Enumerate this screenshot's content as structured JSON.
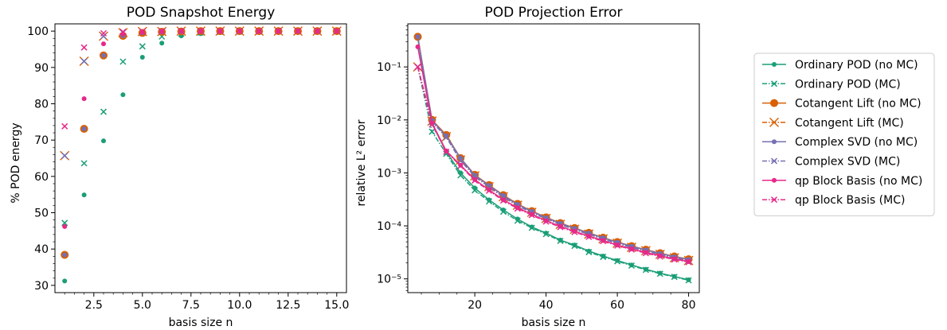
{
  "colors": {
    "ordinary": "#1b9e77",
    "cotangent": "#d95f02",
    "complex": "#7570b3",
    "qp": "#e7298a"
  },
  "legend": [
    {
      "label": "Ordinary POD (no MC)",
      "color": "#1b9e77",
      "marker": "dot",
      "dashed": false
    },
    {
      "label": "Ordinary POD (MC)",
      "color": "#1b9e77",
      "marker": "x",
      "dashed": true
    },
    {
      "label": "Cotangent Lift (no MC)",
      "color": "#d95f02",
      "marker": "dot-large",
      "dashed": false
    },
    {
      "label": "Cotangent Lift (MC)",
      "color": "#d95f02",
      "marker": "x-large",
      "dashed": true
    },
    {
      "label": "Complex SVD (no MC)",
      "color": "#7570b3",
      "marker": "dot",
      "dashed": false
    },
    {
      "label": "Complex SVD (MC)",
      "color": "#7570b3",
      "marker": "x",
      "dashed": true
    },
    {
      "label": "qp Block Basis (no MC)",
      "color": "#e7298a",
      "marker": "dot",
      "dashed": false
    },
    {
      "label": "qp Block Basis (MC)",
      "color": "#e7298a",
      "marker": "x",
      "dashed": true
    }
  ],
  "chart_data": [
    {
      "type": "scatter",
      "title": "POD Snapshot Energy",
      "xlabel": "basis size n",
      "ylabel": "% POD energy",
      "xlim": [
        0.5,
        15.5
      ],
      "ylim": [
        28,
        102
      ],
      "xticks": [
        2.5,
        5.0,
        7.5,
        10.0,
        12.5,
        15.0
      ],
      "xtick_labels": [
        "2.5",
        "5.0",
        "7.5",
        "10.0",
        "12.5",
        "15.0"
      ],
      "yticks": [
        30,
        40,
        50,
        60,
        70,
        80,
        90,
        100
      ],
      "ytick_labels": [
        "30",
        "40",
        "50",
        "60",
        "70",
        "80",
        "90",
        "100"
      ],
      "x": [
        1,
        2,
        3,
        4,
        5,
        6,
        7,
        8,
        9,
        10,
        11,
        12,
        13,
        14,
        15
      ],
      "series": [
        {
          "name": "Ordinary POD (no MC)",
          "color": "#1b9e77",
          "marker": "dot",
          "values": [
            31.2,
            54.9,
            69.8,
            82.5,
            92.8,
            96.7,
            98.7,
            99.3,
            99.6,
            99.8,
            99.9,
            99.9,
            100,
            100,
            100
          ]
        },
        {
          "name": "Ordinary POD (MC)",
          "color": "#1b9e77",
          "marker": "x",
          "values": [
            47.2,
            63.6,
            77.8,
            91.6,
            95.8,
            98.5,
            99.3,
            99.6,
            99.8,
            99.9,
            99.9,
            100,
            100,
            100,
            100
          ]
        },
        {
          "name": "Cotangent Lift (no MC)",
          "color": "#d95f02",
          "marker": "dot-large",
          "values": [
            38.4,
            73.1,
            93.3,
            98.7,
            99.5,
            99.8,
            99.9,
            100,
            100,
            100,
            100,
            100,
            100,
            100,
            100
          ]
        },
        {
          "name": "Cotangent Lift (MC)",
          "color": "#d95f02",
          "marker": "x-large",
          "values": [
            65.7,
            91.7,
            98.6,
            99.6,
            99.9,
            99.9,
            100,
            100,
            100,
            100,
            100,
            100,
            100,
            100,
            100
          ]
        },
        {
          "name": "Complex SVD (no MC)",
          "color": "#7570b3",
          "marker": "dot",
          "values": [
            38.4,
            73.1,
            93.3,
            98.7,
            99.5,
            99.8,
            99.9,
            100,
            100,
            100,
            100,
            100,
            100,
            100,
            100
          ]
        },
        {
          "name": "Complex SVD (MC)",
          "color": "#7570b3",
          "marker": "x",
          "values": [
            65.7,
            91.7,
            98.6,
            99.6,
            99.9,
            99.9,
            100,
            100,
            100,
            100,
            100,
            100,
            100,
            100,
            100
          ]
        },
        {
          "name": "qp Block Basis (no MC)",
          "color": "#e7298a",
          "marker": "dot",
          "values": [
            46.2,
            81.4,
            96.5,
            99.2,
            99.7,
            99.9,
            100,
            100,
            100,
            100,
            100,
            100,
            100,
            100,
            100
          ]
        },
        {
          "name": "qp Block Basis (MC)",
          "color": "#e7298a",
          "marker": "x",
          "values": [
            73.8,
            95.5,
            99.4,
            99.8,
            99.9,
            100,
            100,
            100,
            100,
            100,
            100,
            100,
            100,
            100,
            100
          ]
        }
      ]
    },
    {
      "type": "line",
      "title": "POD Projection Error",
      "xlabel": "basis size n",
      "ylabel": "relative L² error",
      "yscale": "log",
      "xlim": [
        1.2,
        83.0
      ],
      "ylim": [
        5.5e-06,
        0.65
      ],
      "xticks": [
        20,
        40,
        60,
        80
      ],
      "xtick_labels": [
        "20",
        "40",
        "60",
        "80"
      ],
      "yticks": [
        1e-05,
        0.0001,
        0.001,
        0.01,
        0.1
      ],
      "ytick_labels": [
        "10⁻⁵",
        "10⁻⁴",
        "10⁻³",
        "10⁻²",
        "10⁻¹"
      ],
      "x": [
        4,
        8,
        12,
        16,
        20,
        24,
        28,
        32,
        36,
        40,
        44,
        48,
        52,
        56,
        60,
        64,
        68,
        72,
        76,
        80
      ],
      "series": [
        {
          "name": "Ordinary POD (no MC)",
          "color": "#1b9e77",
          "marker": "dot",
          "dashed": false,
          "values": [
            0.35,
            0.0085,
            0.0025,
            0.001,
            0.00052,
            0.00031,
            0.0002,
            0.000135,
            9.55e-05,
            7.3e-05,
            5.4e-05,
            4.35e-05,
            3.35e-05,
            2.7e-05,
            2.22e-05,
            1.83e-05,
            1.52e-05,
            1.28e-05,
            1.11e-05,
            9.6e-06
          ]
        },
        {
          "name": "Ordinary POD (MC)",
          "color": "#1b9e77",
          "marker": "x",
          "dashed": true,
          "values": [
            0.1,
            0.006,
            0.0023,
            0.0009,
            0.00047,
            0.00029,
            0.000185,
            0.000125,
            9.2e-05,
            7e-05,
            5.2e-05,
            4.2e-05,
            3.2e-05,
            2.6e-05,
            2.15e-05,
            1.78e-05,
            1.48e-05,
            1.25e-05,
            1.09e-05,
            9.4e-06
          ]
        },
        {
          "name": "Cotangent Lift (no MC)",
          "color": "#d95f02",
          "marker": "dot-large",
          "dashed": false,
          "values": [
            0.37,
            0.01,
            0.0052,
            0.0019,
            0.00092,
            0.00059,
            0.00038,
            0.00026,
            0.00019,
            0.000145,
            0.000113,
            9.1e-05,
            7.4e-05,
            6e-05,
            4.95e-05,
            4.15e-05,
            3.55e-05,
            3.05e-05,
            2.65e-05,
            2.35e-05
          ]
        },
        {
          "name": "Cotangent Lift (MC)",
          "color": "#d95f02",
          "marker": "x-large",
          "dashed": true,
          "values": [
            0.1,
            0.0095,
            0.0048,
            0.00175,
            0.00088,
            0.00055,
            0.000355,
            0.000245,
            0.00018,
            0.000138,
            0.000107,
            8.6e-05,
            7e-05,
            5.7e-05,
            4.7e-05,
            3.95e-05,
            3.4e-05,
            2.9e-05,
            2.5e-05,
            2.22e-05
          ]
        },
        {
          "name": "Complex SVD (no MC)",
          "color": "#7570b3",
          "marker": "dot",
          "dashed": false,
          "values": [
            0.37,
            0.0098,
            0.005,
            0.0019,
            0.0009,
            0.00058,
            0.000375,
            0.000255,
            0.000188,
            0.000143,
            0.000112,
            9e-05,
            7.3e-05,
            5.95e-05,
            4.9e-05,
            4.12e-05,
            3.52e-05,
            3.02e-05,
            2.62e-05,
            2.32e-05
          ]
        },
        {
          "name": "Complex SVD (MC)",
          "color": "#7570b3",
          "marker": "x",
          "dashed": true,
          "values": [
            0.1,
            0.0092,
            0.0047,
            0.0017,
            0.00086,
            0.00054,
            0.00035,
            0.00024,
            0.000178,
            0.000136,
            0.000106,
            8.5e-05,
            6.9e-05,
            5.65e-05,
            4.65e-05,
            3.9e-05,
            3.35e-05,
            2.87e-05,
            2.48e-05,
            2.2e-05
          ]
        },
        {
          "name": "qp Block Basis (no MC)",
          "color": "#e7298a",
          "marker": "dot",
          "dashed": false,
          "values": [
            0.24,
            0.0088,
            0.0026,
            0.0014,
            0.00075,
            0.00048,
            0.00031,
            0.00022,
            0.000165,
            0.000125,
            9.8e-05,
            7.9e-05,
            6.4e-05,
            5.3e-05,
            4.35e-05,
            3.68e-05,
            3.15e-05,
            2.72e-05,
            2.38e-05,
            2.12e-05
          ]
        },
        {
          "name": "qp Block Basis (MC)",
          "color": "#e7298a",
          "marker": "x",
          "dashed": true,
          "values": [
            0.1,
            0.0082,
            0.0025,
            0.00135,
            0.00072,
            0.00046,
            0.0003,
            0.000212,
            0.00016,
            0.000121,
            9.5e-05,
            7.65e-05,
            6.2e-05,
            5.15e-05,
            4.25e-05,
            3.58e-05,
            3.06e-05,
            2.64e-05,
            2.32e-05,
            2.07e-05
          ]
        }
      ]
    }
  ]
}
